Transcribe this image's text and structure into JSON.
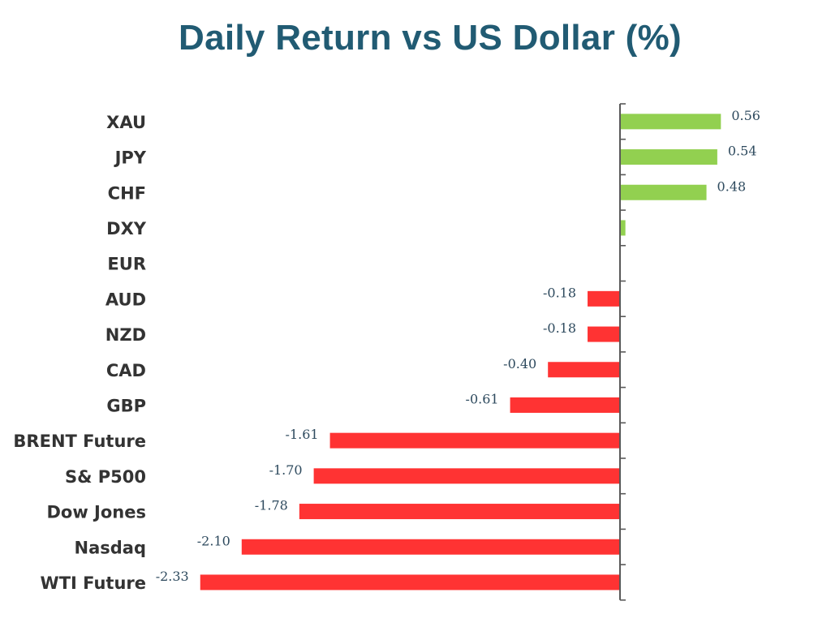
{
  "chart_data": {
    "type": "bar",
    "orientation": "horizontal",
    "title": "Daily Return vs US Dollar (%)",
    "xlabel": "",
    "ylabel": "",
    "categories": [
      "XAU",
      "JPY",
      "CHF",
      "DXY",
      "EUR",
      "AUD",
      "NZD",
      "CAD",
      "GBP",
      "BRENT Future",
      "S& P500",
      "Dow Jones",
      "Nasdaq",
      "WTI Future"
    ],
    "values": [
      0.56,
      0.54,
      0.48,
      0.03,
      0.0,
      -0.18,
      -0.18,
      -0.4,
      -0.61,
      -1.61,
      -1.7,
      -1.78,
      -2.1,
      -2.33
    ],
    "value_labels": [
      "0.56",
      "0.54",
      "0.48",
      "",
      "",
      "-0.18",
      "-0.18",
      "-0.40",
      "-0.61",
      "-1.61",
      "-1.70",
      "-1.78",
      "-2.10",
      "-2.33"
    ],
    "positive_color": "#92d050",
    "negative_color": "#ff3333",
    "grid": false,
    "legend": "none"
  }
}
